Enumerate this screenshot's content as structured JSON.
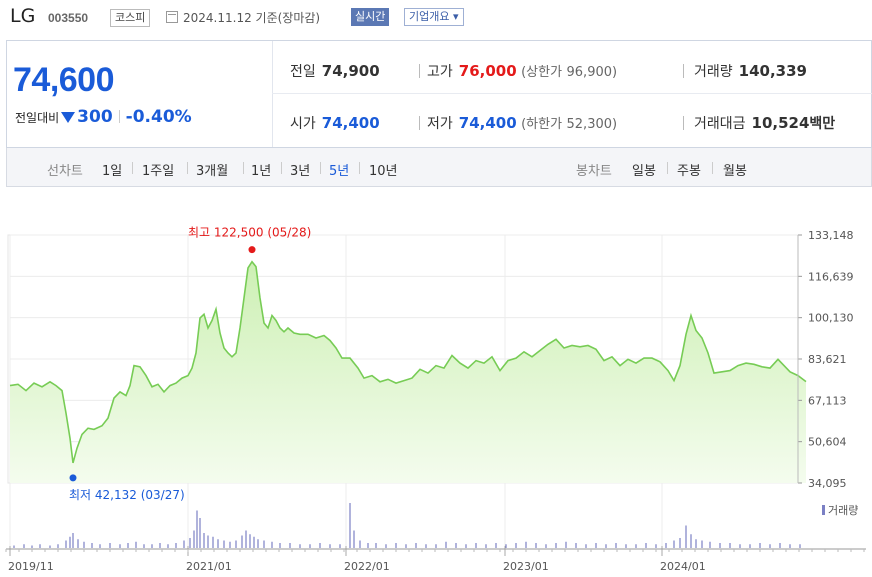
{
  "header": {
    "name": "LG",
    "code": "003550",
    "market": "코스피",
    "date": "2024.11.12",
    "basis": "기준(장마감)",
    "realtime_button": "실시간",
    "overview_button": "기업개요 ▾"
  },
  "quote": {
    "price": "74,600",
    "change_label": "전일대비",
    "change": "300",
    "change_pct": "-0.40%",
    "prev_label": "전일",
    "prev": "74,900",
    "high_label": "고가",
    "high": "76,000",
    "upper_limit_label": "(상한가",
    "upper_limit": "96,900)",
    "volume_label": "거래량",
    "volume": "140,339",
    "open_label": "시가",
    "open": "74,400",
    "low_label": "저가",
    "low": "74,400",
    "lower_limit_label": "(하한가",
    "lower_limit": "52,300)",
    "amount_label": "거래대금",
    "amount": "10,524",
    "amount_unit": "백만"
  },
  "colors": {
    "up": "#e41a1a",
    "down": "#1a5bd8",
    "line": "#77cc55",
    "fill_top": "#cdf0b4",
    "volume_bar": "#7b80c4"
  },
  "tabs": {
    "line_chart_label": "선차트",
    "line_periods": [
      "1일",
      "1주일",
      "3개월",
      "1년",
      "3년",
      "5년",
      "10년"
    ],
    "active_period": "5년",
    "candle_chart_label": "봉차트",
    "candle_periods": [
      "일봉",
      "주봉",
      "월봉"
    ]
  },
  "chart_data": {
    "type": "area",
    "y_ticks": [
      "133,148",
      "116,639",
      "100,130",
      "83,621",
      "67,113",
      "50,604",
      "34,095"
    ],
    "ylim": [
      34095,
      133148
    ],
    "x_ticks": [
      "2019/11",
      "2021/01",
      "2022/01",
      "2023/01",
      "2024/01"
    ],
    "max_label": "최고 122,500 (05/28)",
    "min_label": "최저 42,132 (03/27)",
    "volume_legend": "거래량",
    "price_points": [
      [
        0,
        73000
      ],
      [
        8,
        73500
      ],
      [
        16,
        71000
      ],
      [
        24,
        74000
      ],
      [
        32,
        72500
      ],
      [
        40,
        74500
      ],
      [
        46,
        73000
      ],
      [
        52,
        71000
      ],
      [
        56,
        62000
      ],
      [
        60,
        52000
      ],
      [
        63,
        42132
      ],
      [
        67,
        48000
      ],
      [
        72,
        53500
      ],
      [
        78,
        56000
      ],
      [
        84,
        55500
      ],
      [
        92,
        57000
      ],
      [
        98,
        60000
      ],
      [
        104,
        68000
      ],
      [
        110,
        70500
      ],
      [
        116,
        69000
      ],
      [
        120,
        73000
      ],
      [
        124,
        81000
      ],
      [
        130,
        80500
      ],
      [
        136,
        77000
      ],
      [
        142,
        72500
      ],
      [
        148,
        73500
      ],
      [
        154,
        70500
      ],
      [
        160,
        73000
      ],
      [
        166,
        74000
      ],
      [
        172,
        76000
      ],
      [
        178,
        77000
      ],
      [
        182,
        80000
      ],
      [
        186,
        86000
      ],
      [
        190,
        100000
      ],
      [
        194,
        101500
      ],
      [
        198,
        96000
      ],
      [
        202,
        99000
      ],
      [
        206,
        103500
      ],
      [
        210,
        94000
      ],
      [
        214,
        88000
      ],
      [
        218,
        86000
      ],
      [
        222,
        84500
      ],
      [
        226,
        86000
      ],
      [
        230,
        96000
      ],
      [
        234,
        108000
      ],
      [
        238,
        120000
      ],
      [
        242,
        122500
      ],
      [
        246,
        120500
      ],
      [
        250,
        108000
      ],
      [
        254,
        98000
      ],
      [
        258,
        96000
      ],
      [
        262,
        101000
      ],
      [
        266,
        99000
      ],
      [
        270,
        96000
      ],
      [
        274,
        94500
      ],
      [
        278,
        96000
      ],
      [
        284,
        94000
      ],
      [
        290,
        93500
      ],
      [
        298,
        93500
      ],
      [
        306,
        92000
      ],
      [
        314,
        93000
      ],
      [
        320,
        91000
      ],
      [
        326,
        88000
      ],
      [
        332,
        84000
      ],
      [
        340,
        84000
      ],
      [
        348,
        80000
      ],
      [
        354,
        76000
      ],
      [
        362,
        77000
      ],
      [
        370,
        74500
      ],
      [
        378,
        75500
      ],
      [
        386,
        74000
      ],
      [
        394,
        75000
      ],
      [
        402,
        76000
      ],
      [
        410,
        79500
      ],
      [
        418,
        78000
      ],
      [
        426,
        81000
      ],
      [
        434,
        80000
      ],
      [
        442,
        85000
      ],
      [
        450,
        82000
      ],
      [
        458,
        80000
      ],
      [
        466,
        83000
      ],
      [
        474,
        82000
      ],
      [
        482,
        84500
      ],
      [
        490,
        79000
      ],
      [
        498,
        83000
      ],
      [
        506,
        84000
      ],
      [
        514,
        86500
      ],
      [
        522,
        84500
      ],
      [
        530,
        87000
      ],
      [
        538,
        89500
      ],
      [
        546,
        91500
      ],
      [
        554,
        88000
      ],
      [
        562,
        89000
      ],
      [
        570,
        88500
      ],
      [
        578,
        89000
      ],
      [
        586,
        87500
      ],
      [
        594,
        83000
      ],
      [
        602,
        84500
      ],
      [
        610,
        81000
      ],
      [
        618,
        83500
      ],
      [
        626,
        82000
      ],
      [
        634,
        84000
      ],
      [
        642,
        84000
      ],
      [
        650,
        82500
      ],
      [
        658,
        79000
      ],
      [
        664,
        75000
      ],
      [
        670,
        81000
      ],
      [
        676,
        93500
      ],
      [
        681,
        101000
      ],
      [
        686,
        95000
      ],
      [
        692,
        92000
      ],
      [
        698,
        86000
      ],
      [
        704,
        78000
      ],
      [
        712,
        78500
      ],
      [
        720,
        79000
      ],
      [
        728,
        81000
      ],
      [
        736,
        82000
      ],
      [
        744,
        81500
      ],
      [
        752,
        80500
      ],
      [
        760,
        80000
      ],
      [
        768,
        83500
      ],
      [
        774,
        81000
      ],
      [
        780,
        78500
      ],
      [
        788,
        77000
      ],
      [
        796,
        74600
      ]
    ],
    "volume_points": [
      [
        4,
        2
      ],
      [
        14,
        3
      ],
      [
        22,
        2
      ],
      [
        30,
        3
      ],
      [
        40,
        2
      ],
      [
        48,
        3
      ],
      [
        56,
        6
      ],
      [
        60,
        9
      ],
      [
        63,
        12
      ],
      [
        68,
        7
      ],
      [
        74,
        5
      ],
      [
        82,
        4
      ],
      [
        90,
        3
      ],
      [
        100,
        4
      ],
      [
        110,
        3
      ],
      [
        118,
        4
      ],
      [
        126,
        5
      ],
      [
        134,
        3
      ],
      [
        142,
        3
      ],
      [
        150,
        4
      ],
      [
        158,
        3
      ],
      [
        166,
        4
      ],
      [
        174,
        6
      ],
      [
        180,
        8
      ],
      [
        184,
        14
      ],
      [
        187,
        30
      ],
      [
        190,
        24
      ],
      [
        194,
        12
      ],
      [
        198,
        10
      ],
      [
        203,
        9
      ],
      [
        208,
        7
      ],
      [
        214,
        6
      ],
      [
        220,
        5
      ],
      [
        226,
        6
      ],
      [
        232,
        10
      ],
      [
        236,
        14
      ],
      [
        240,
        11
      ],
      [
        244,
        9
      ],
      [
        248,
        7
      ],
      [
        254,
        6
      ],
      [
        262,
        5
      ],
      [
        270,
        4
      ],
      [
        280,
        4
      ],
      [
        290,
        3
      ],
      [
        300,
        3
      ],
      [
        310,
        4
      ],
      [
        320,
        3
      ],
      [
        330,
        3
      ],
      [
        340,
        36
      ],
      [
        344,
        14
      ],
      [
        350,
        6
      ],
      [
        358,
        4
      ],
      [
        366,
        4
      ],
      [
        376,
        3
      ],
      [
        386,
        4
      ],
      [
        396,
        3
      ],
      [
        406,
        4
      ],
      [
        416,
        3
      ],
      [
        426,
        3
      ],
      [
        436,
        5
      ],
      [
        446,
        4
      ],
      [
        456,
        3
      ],
      [
        466,
        4
      ],
      [
        476,
        3
      ],
      [
        486,
        4
      ],
      [
        496,
        3
      ],
      [
        506,
        4
      ],
      [
        516,
        5
      ],
      [
        526,
        4
      ],
      [
        536,
        3
      ],
      [
        546,
        4
      ],
      [
        556,
        5
      ],
      [
        566,
        4
      ],
      [
        576,
        3
      ],
      [
        586,
        4
      ],
      [
        596,
        3
      ],
      [
        606,
        4
      ],
      [
        616,
        3
      ],
      [
        626,
        3
      ],
      [
        636,
        4
      ],
      [
        646,
        3
      ],
      [
        656,
        4
      ],
      [
        664,
        6
      ],
      [
        670,
        8
      ],
      [
        676,
        18
      ],
      [
        681,
        11
      ],
      [
        686,
        7
      ],
      [
        692,
        6
      ],
      [
        700,
        5
      ],
      [
        710,
        4
      ],
      [
        720,
        4
      ],
      [
        730,
        3
      ],
      [
        740,
        3
      ],
      [
        750,
        4
      ],
      [
        760,
        3
      ],
      [
        770,
        4
      ],
      [
        780,
        3
      ],
      [
        790,
        3
      ]
    ]
  }
}
